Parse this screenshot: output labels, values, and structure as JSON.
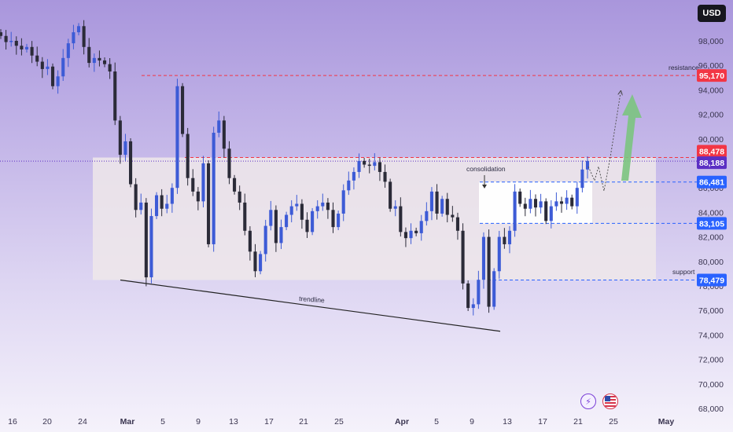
{
  "currency": "USD",
  "price_axis": {
    "min": 67000,
    "max": 100600,
    "ticks": [
      68000,
      70000,
      72000,
      74000,
      76000,
      78000,
      80000,
      82000,
      84000,
      86000,
      88000,
      90000,
      92000,
      94000,
      96000,
      98000
    ],
    "tick_labels": [
      "68,000",
      "70,000",
      "72,000",
      "74,000",
      "76,000",
      "78,000",
      "80,000",
      "82,000",
      "84,000",
      "86,000",
      "88,000",
      "90,000",
      "92,000",
      "94,000",
      "96,000",
      "98,000"
    ]
  },
  "time_axis": {
    "labels": [
      "16",
      "20",
      "24",
      "Mar",
      "5",
      "9",
      "13",
      "17",
      "21",
      "25",
      "Apr",
      "5",
      "9",
      "13",
      "17",
      "21",
      "25",
      "May"
    ],
    "bold": [
      false,
      false,
      false,
      true,
      false,
      false,
      false,
      false,
      false,
      false,
      true,
      false,
      false,
      false,
      false,
      false,
      false,
      true
    ]
  },
  "levels": {
    "resistance": {
      "label": "resistance",
      "price": 95170,
      "badge": "95,170",
      "color": "#f23645"
    },
    "upper": {
      "price": 88478,
      "badge": "88,478",
      "color": "#f23645"
    },
    "current": {
      "price": 88188,
      "badge": "88,188",
      "color": "#5b2fc4"
    },
    "breakout": {
      "price": 86481,
      "badge": "86,481",
      "color": "#2962ff"
    },
    "consolidation_low": {
      "price": 83105,
      "badge": "83,105",
      "color": "#2962ff"
    },
    "support": {
      "label": "support",
      "price": 78479,
      "badge": "78,479",
      "color": "#2962ff"
    }
  },
  "annotations": {
    "consolidation": "consolidation",
    "trendline": "trendline"
  },
  "icons": {
    "bolt": "lightning-icon",
    "flag": "us-flag-icon"
  },
  "colors": {
    "up": "#3d5bd6",
    "down": "#2b2b38",
    "arrow": "#7bc47f"
  },
  "chart_data": {
    "type": "candlestick",
    "symbol_currency": "USD",
    "x_range": [
      "Feb 13",
      "May 1"
    ],
    "ylim": [
      67000,
      100600
    ],
    "closes": [
      98400,
      97900,
      98000,
      97600,
      97300,
      97500,
      96800,
      96300,
      95700,
      95900,
      94300,
      95100,
      96600,
      97800,
      98700,
      99200,
      97500,
      96200,
      96600,
      96400,
      96100,
      95500,
      91500,
      88700,
      89800,
      86300,
      84200,
      84800,
      78700,
      83700,
      85400,
      84300,
      84700,
      86000,
      94300,
      90400,
      86800,
      85700,
      84900,
      88000,
      81400,
      90500,
      91500,
      89200,
      86800,
      85700,
      84800,
      82500,
      80800,
      79200,
      80600,
      82900,
      84200,
      81500,
      82800,
      83800,
      84500,
      84700,
      83400,
      82400,
      84100,
      84500,
      84800,
      84200,
      82800,
      83900,
      85800,
      86600,
      87300,
      88200,
      87900,
      87800,
      88100,
      87300,
      86500,
      84300,
      84500,
      82400,
      81900,
      82500,
      82300,
      83300,
      84100,
      85700,
      83900,
      85100,
      83800,
      83600,
      82500,
      78200,
      76200,
      76500,
      78500,
      82000,
      76300,
      79200,
      82000,
      81400,
      82500,
      85700,
      84700,
      84300,
      85100,
      84400,
      84900,
      83300,
      84500,
      84900,
      84700,
      85200,
      84500,
      86000,
      87500,
      88200
    ],
    "levels": [
      {
        "name": "resistance",
        "value": 95170
      },
      {
        "value": 88478
      },
      {
        "value": 88188
      },
      {
        "value": 86481
      },
      {
        "value": 83105
      },
      {
        "name": "support",
        "value": 78479
      }
    ],
    "zones": [
      {
        "from_price": 78479,
        "to_price": 88478
      },
      {
        "name": "consolidation",
        "from_price": 83105,
        "to_price": 86481
      }
    ],
    "trendline": {
      "start_price": 78479,
      "end_price": 74300
    },
    "projection": {
      "target_price": 95170
    }
  }
}
